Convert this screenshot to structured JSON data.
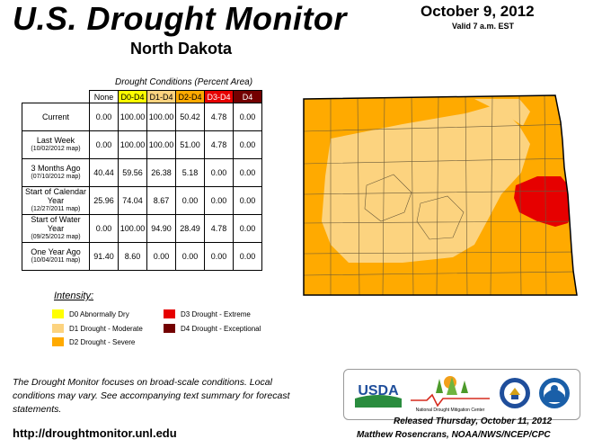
{
  "header": {
    "title": "U.S. Drought Monitor",
    "subtitle": "North Dakota",
    "date": "October 9, 2012",
    "valid": "Valid 7 a.m. EST"
  },
  "table": {
    "caption": "Drought Conditions (Percent Area)",
    "columns": [
      "None",
      "D0-D4",
      "D1-D4",
      "D2-D4",
      "D3-D4",
      "D4"
    ],
    "column_colors": [
      "#ffffff",
      "#ffff00",
      "#fcd37f",
      "#ffaa00",
      "#e60000",
      "#730000"
    ],
    "column_text_colors": [
      "#000000",
      "#000000",
      "#000000",
      "#000000",
      "#ffffff",
      "#ffffff"
    ],
    "rows": [
      {
        "label": "Current",
        "sublabel": "",
        "values": [
          "0.00",
          "100.00",
          "100.00",
          "50.42",
          "4.78",
          "0.00"
        ]
      },
      {
        "label": "Last Week",
        "sublabel": "(10/02/2012 map)",
        "values": [
          "0.00",
          "100.00",
          "100.00",
          "51.00",
          "4.78",
          "0.00"
        ]
      },
      {
        "label": "3 Months Ago",
        "sublabel": "(07/10/2012 map)",
        "values": [
          "40.44",
          "59.56",
          "26.38",
          "5.18",
          "0.00",
          "0.00"
        ]
      },
      {
        "label": "Start of Calendar Year",
        "sublabel": "(12/27/2011 map)",
        "values": [
          "25.96",
          "74.04",
          "8.67",
          "0.00",
          "0.00",
          "0.00"
        ]
      },
      {
        "label": "Start of Water Year",
        "sublabel": "(09/25/2012 map)",
        "values": [
          "0.00",
          "100.00",
          "94.90",
          "28.49",
          "4.78",
          "0.00"
        ]
      },
      {
        "label": "One Year Ago",
        "sublabel": "(10/04/2011 map)",
        "values": [
          "91.40",
          "8.60",
          "0.00",
          "0.00",
          "0.00",
          "0.00"
        ]
      }
    ]
  },
  "legend": {
    "title": "Intensity:",
    "items": [
      {
        "label": "D0 Abnormally Dry",
        "color": "#ffff00"
      },
      {
        "label": "D1 Drought - Moderate",
        "color": "#fcd37f"
      },
      {
        "label": "D2 Drought - Severe",
        "color": "#ffaa00"
      },
      {
        "label": "D3 Drought - Extreme",
        "color": "#e60000"
      },
      {
        "label": "D4 Drought - Exceptional",
        "color": "#730000"
      }
    ]
  },
  "footer": {
    "note": "The Drought Monitor focuses on broad-scale conditions. Local conditions may vary. See accompanying text summary for forecast statements.",
    "url": "http://droughtmonitor.unl.edu",
    "released": "Released Thursday, October 11, 2012",
    "authors": "Matthew Rosencrans, NOAA/NWS/NCEP/CPC"
  },
  "logos": {
    "usda": "USDA",
    "ndmc": "National Drought Mitigation Center"
  },
  "map": {
    "region": "North Dakota",
    "colors": {
      "d1": "#fcd37f",
      "d2": "#ffaa00",
      "d3": "#e60000"
    }
  }
}
